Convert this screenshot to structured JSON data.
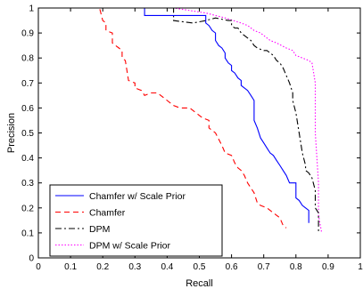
{
  "chart_data": {
    "type": "line",
    "xlabel": "Recall",
    "ylabel": "Precision",
    "xlim": [
      0,
      1
    ],
    "ylim": [
      0,
      1
    ],
    "xticks": [
      "0",
      "0.1",
      "0.2",
      "0.3",
      "0.4",
      "0.5",
      "0.6",
      "0.7",
      "0.8",
      "0.9",
      "1"
    ],
    "yticks": [
      "0",
      "0.1",
      "0.2",
      "0.3",
      "0.4",
      "0.5",
      "0.6",
      "0.7",
      "0.8",
      "0.9",
      "1"
    ],
    "legend_position": "bottom-left",
    "grid": false,
    "series": [
      {
        "name": "Chamfer w/ Scale Prior",
        "color": "#0000ff",
        "dash": "solid",
        "x": [
          0,
          0.33,
          0.33,
          0.52,
          0.52,
          0.53,
          0.54,
          0.55,
          0.55,
          0.56,
          0.57,
          0.58,
          0.58,
          0.59,
          0.6,
          0.6,
          0.61,
          0.62,
          0.63,
          0.63,
          0.64,
          0.65,
          0.66,
          0.67,
          0.67,
          0.68,
          0.69,
          0.7,
          0.71,
          0.72,
          0.73,
          0.74,
          0.75,
          0.76,
          0.77,
          0.78,
          0.8,
          0.8,
          0.81,
          0.82,
          0.83,
          0.84,
          0.84
        ],
        "y": [
          1.0,
          1.0,
          0.97,
          0.97,
          0.94,
          0.93,
          0.91,
          0.9,
          0.87,
          0.85,
          0.84,
          0.82,
          0.8,
          0.78,
          0.77,
          0.75,
          0.74,
          0.72,
          0.71,
          0.69,
          0.68,
          0.67,
          0.65,
          0.63,
          0.55,
          0.52,
          0.48,
          0.46,
          0.44,
          0.42,
          0.41,
          0.39,
          0.37,
          0.35,
          0.33,
          0.3,
          0.3,
          0.24,
          0.23,
          0.21,
          0.2,
          0.19,
          0.14
        ]
      },
      {
        "name": "Chamfer",
        "color": "#ff0000",
        "dash": "dashed",
        "x": [
          0,
          0.19,
          0.2,
          0.21,
          0.21,
          0.23,
          0.23,
          0.24,
          0.25,
          0.26,
          0.26,
          0.27,
          0.28,
          0.3,
          0.3,
          0.32,
          0.33,
          0.35,
          0.37,
          0.38,
          0.4,
          0.42,
          0.44,
          0.47,
          0.49,
          0.51,
          0.53,
          0.53,
          0.55,
          0.57,
          0.58,
          0.6,
          0.61,
          0.62,
          0.63,
          0.64,
          0.65,
          0.66,
          0.67,
          0.68,
          0.69,
          0.71,
          0.73,
          0.75,
          0.76,
          0.77
        ],
        "y": [
          1.0,
          1.0,
          0.95,
          0.94,
          0.91,
          0.9,
          0.86,
          0.85,
          0.84,
          0.83,
          0.8,
          0.79,
          0.71,
          0.7,
          0.68,
          0.67,
          0.65,
          0.66,
          0.66,
          0.65,
          0.63,
          0.61,
          0.6,
          0.6,
          0.58,
          0.56,
          0.55,
          0.52,
          0.5,
          0.45,
          0.42,
          0.41,
          0.38,
          0.36,
          0.35,
          0.33,
          0.3,
          0.28,
          0.26,
          0.22,
          0.21,
          0.2,
          0.18,
          0.16,
          0.13,
          0.12
        ]
      },
      {
        "name": "DPM",
        "color": "#000000",
        "dash": "dashdot",
        "x": [
          0,
          0.42,
          0.42,
          0.48,
          0.52,
          0.55,
          0.59,
          0.6,
          0.6,
          0.61,
          0.62,
          0.63,
          0.64,
          0.65,
          0.66,
          0.67,
          0.68,
          0.7,
          0.71,
          0.72,
          0.73,
          0.74,
          0.75,
          0.76,
          0.77,
          0.78,
          0.79,
          0.79,
          0.8,
          0.81,
          0.82,
          0.83,
          0.83,
          0.84,
          0.85,
          0.86,
          0.86,
          0.87,
          0.87
        ],
        "y": [
          1.0,
          1.0,
          0.95,
          0.94,
          0.95,
          0.96,
          0.95,
          0.95,
          0.93,
          0.92,
          0.92,
          0.9,
          0.89,
          0.88,
          0.87,
          0.85,
          0.84,
          0.83,
          0.83,
          0.82,
          0.81,
          0.79,
          0.78,
          0.76,
          0.73,
          0.7,
          0.66,
          0.63,
          0.58,
          0.5,
          0.42,
          0.37,
          0.35,
          0.34,
          0.32,
          0.27,
          0.2,
          0.18,
          0.1
        ]
      },
      {
        "name": "DPM w/ Scale Prior",
        "color": "#ff00ff",
        "dash": "dotted",
        "x": [
          0,
          0.42,
          0.52,
          0.58,
          0.63,
          0.65,
          0.66,
          0.67,
          0.69,
          0.7,
          0.72,
          0.74,
          0.77,
          0.79,
          0.8,
          0.82,
          0.84,
          0.85,
          0.86,
          0.86,
          0.87,
          0.87,
          0.88
        ],
        "y": [
          1.0,
          1.0,
          0.98,
          0.96,
          0.94,
          0.93,
          0.92,
          0.91,
          0.9,
          0.89,
          0.87,
          0.86,
          0.84,
          0.83,
          0.81,
          0.8,
          0.79,
          0.78,
          0.7,
          0.5,
          0.3,
          0.17,
          0.1
        ]
      }
    ]
  }
}
